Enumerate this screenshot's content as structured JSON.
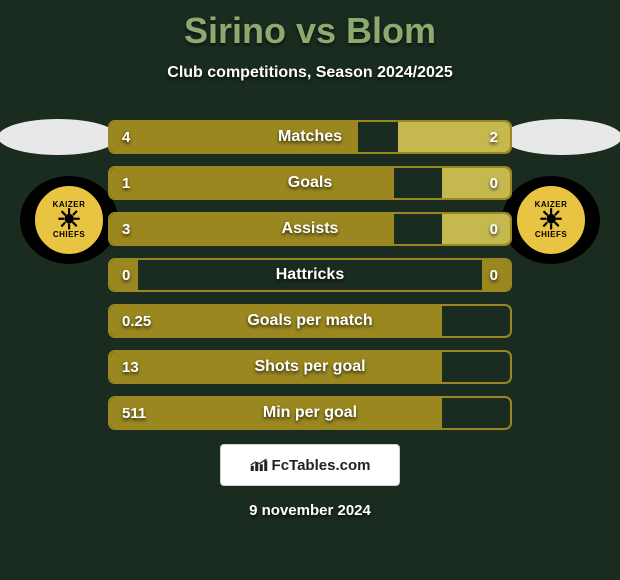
{
  "header": {
    "player1": "Sirino",
    "vs": "vs",
    "player2": "Blom",
    "title_color": "#8da96f",
    "subtitle": "Club competitions, Season 2024/2025"
  },
  "badge": {
    "line1": "KAIZER",
    "line2": "CHIEFS",
    "badge_bg": "#e9c342"
  },
  "stats": {
    "bar_border": "#9a8720",
    "fill_dark": "#9a8720",
    "fill_light": "#c5b84f",
    "rows": [
      {
        "label": "Matches",
        "left_val": "4",
        "right_val": "2",
        "left_pct": 62,
        "right_pct": 28,
        "right_light": true
      },
      {
        "label": "Goals",
        "left_val": "1",
        "right_val": "0",
        "left_pct": 71,
        "right_pct": 17,
        "right_light": true
      },
      {
        "label": "Assists",
        "left_val": "3",
        "right_val": "0",
        "left_pct": 71,
        "right_pct": 17,
        "right_light": true
      },
      {
        "label": "Hattricks",
        "left_val": "0",
        "right_val": "0",
        "left_pct": 7,
        "right_pct": 7,
        "right_light": false
      },
      {
        "label": "Goals per match",
        "left_val": "0.25",
        "right_val": "",
        "left_pct": 83,
        "right_pct": 0,
        "right_light": false
      },
      {
        "label": "Shots per goal",
        "left_val": "13",
        "right_val": "",
        "left_pct": 83,
        "right_pct": 0,
        "right_light": false
      },
      {
        "label": "Min per goal",
        "left_val": "511",
        "right_val": "",
        "left_pct": 83,
        "right_pct": 0,
        "right_light": false
      }
    ]
  },
  "footer": {
    "brand": "FcTables.com",
    "date": "9 november 2024"
  }
}
